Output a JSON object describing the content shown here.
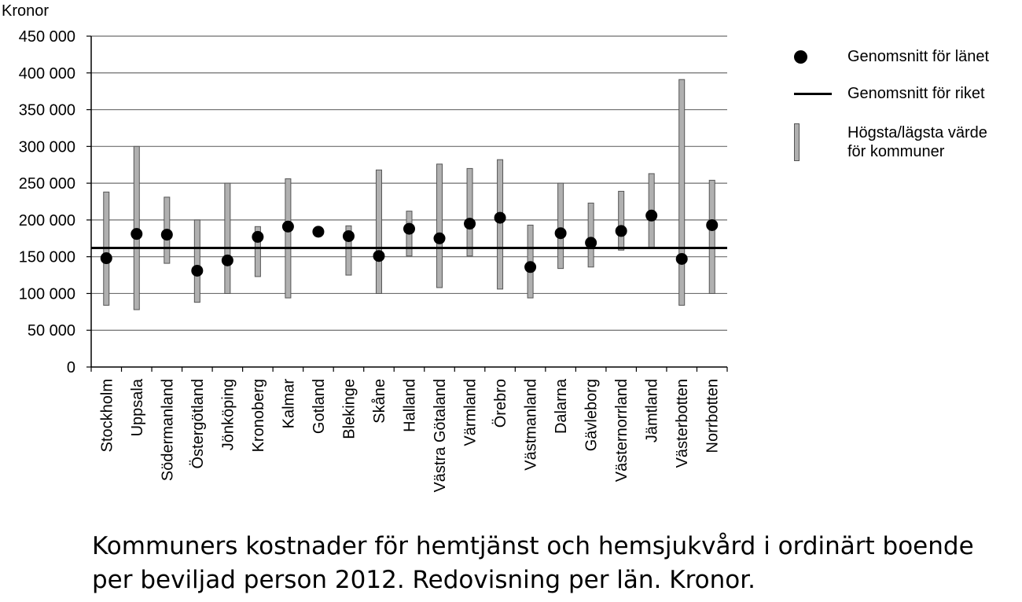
{
  "chart_data": {
    "type": "range-dot",
    "ylabel": "Kronor",
    "ylim": [
      0,
      450000
    ],
    "yticks": [
      0,
      50000,
      100000,
      150000,
      200000,
      250000,
      300000,
      350000,
      400000,
      450000
    ],
    "ytick_labels": [
      "0",
      "50 000",
      "100 000",
      "150 000",
      "200 000",
      "250 000",
      "300 000",
      "350 000",
      "400 000",
      "450 000"
    ],
    "grid": true,
    "legend_position": "right",
    "categories": [
      "Stockholm",
      "Uppsala",
      "Södermanland",
      "Östergötland",
      "Jönköping",
      "Kronoberg",
      "Kalmar",
      "Gotland",
      "Blekinge",
      "Skåne",
      "Halland",
      "Västra Götaland",
      "Värmland",
      "Örebro",
      "Västmanland",
      "Dalarna",
      "Gävleborg",
      "Västernorrland",
      "Jämtland",
      "Västerbotten",
      "Norrbotten"
    ],
    "series": [
      {
        "name": "Genomsnitt för länet",
        "kind": "dot",
        "color": "#000000",
        "values": [
          148000,
          181000,
          180000,
          131000,
          145000,
          177000,
          191000,
          184000,
          178000,
          151000,
          188000,
          175000,
          195000,
          203000,
          136000,
          182000,
          169000,
          185000,
          206000,
          147000,
          193000
        ]
      },
      {
        "name": "Högsta/lägsta värde\nför kommuner",
        "kind": "range",
        "color": "#b0b0b0",
        "low": [
          84000,
          78000,
          141000,
          88000,
          100000,
          123000,
          94000,
          null,
          125000,
          100000,
          151000,
          108000,
          151000,
          106000,
          94000,
          134000,
          136000,
          159000,
          161000,
          84000,
          100000
        ],
        "high": [
          238000,
          300000,
          231000,
          200000,
          250000,
          191000,
          256000,
          null,
          192000,
          268000,
          212000,
          276000,
          270000,
          282000,
          193000,
          250000,
          223000,
          239000,
          263000,
          391000,
          254000
        ]
      },
      {
        "name": "Genomsnitt för riket",
        "kind": "hline",
        "color": "#000000",
        "value": 162000
      }
    ]
  },
  "caption": "Kommuners kostnader för hemtjänst och hemsjukvård i ordinärt boende per beviljad person 2012. Redovisning per län. Kronor."
}
